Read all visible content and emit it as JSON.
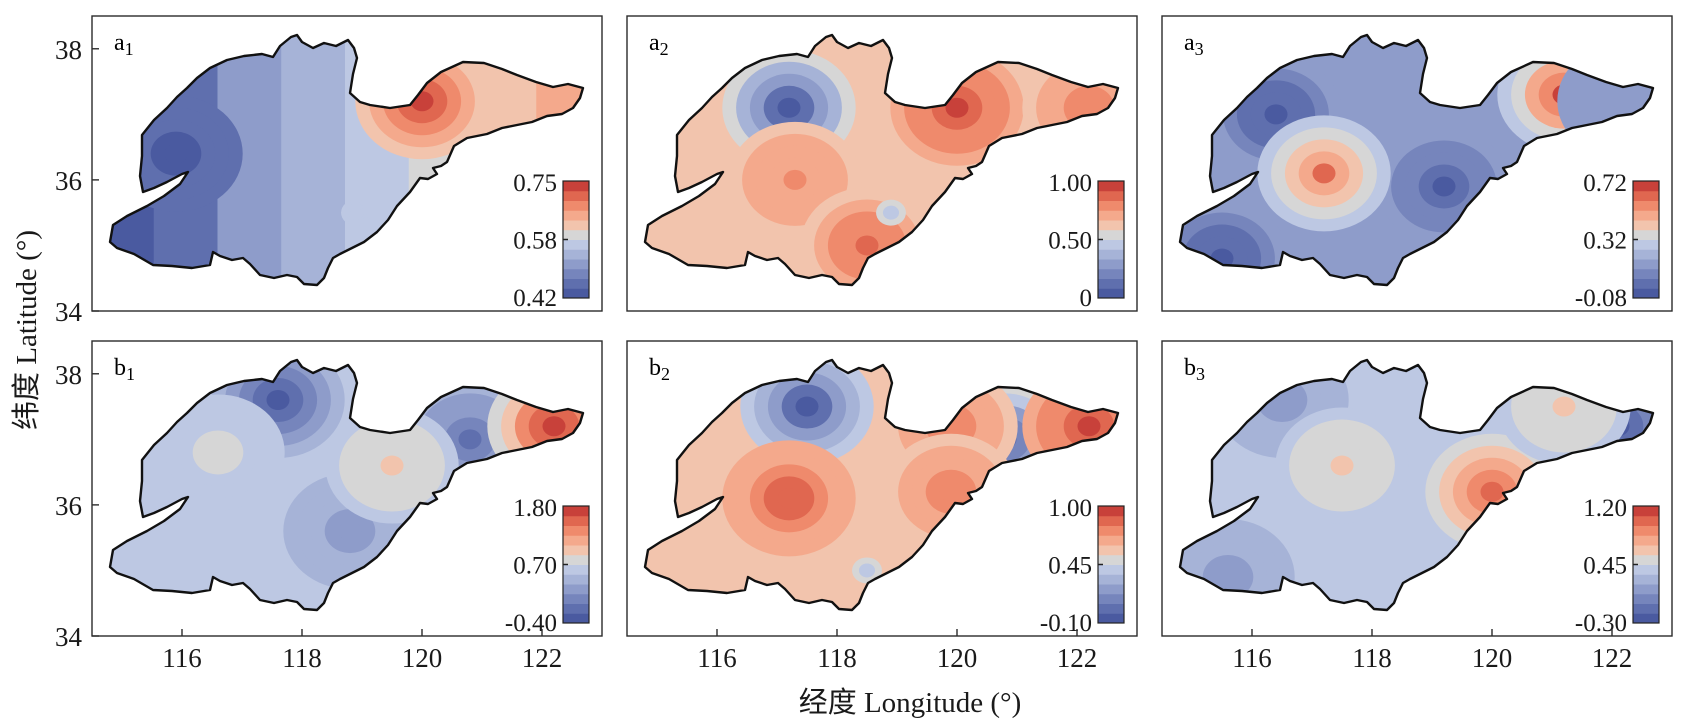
{
  "figure": {
    "xlabel": "经度 Longitude (°)",
    "ylabel": "纬度 Latitude (°)"
  },
  "chart_data": {
    "type": "heatmap",
    "title": "",
    "xlabel": "经度 Longitude (°)",
    "ylabel": "纬度 Latitude (°)",
    "xlim": [
      114.5,
      123.0
    ],
    "ylim": [
      34,
      38.5
    ],
    "x_ticks": [
      116,
      118,
      120,
      122
    ],
    "y_ticks": [
      34,
      36,
      38
    ],
    "grid": false,
    "layout": "2 rows x 3 columns, shared axes",
    "colormap": {
      "name": "diverging blue-white-red",
      "levels": [
        "#4a5aa0",
        "#5f6fae",
        "#7685bc",
        "#8e9cca",
        "#a6b3d7",
        "#bdc8e3",
        "#d6d6d6",
        "#f2c4ad",
        "#f4a98c",
        "#ef8a6c",
        "#e06750",
        "#c8413a"
      ]
    },
    "panels": [
      {
        "id": "a1",
        "label": "a",
        "sub": "1",
        "colorbar": {
          "min": "0.42",
          "mid": "0.58",
          "max": "0.75",
          "range": [
            0.42,
            0.75
          ]
        },
        "features": [
          {
            "type": "gradient-west-east",
            "west_value": 0.44,
            "east_value": 0.66
          },
          {
            "type": "high",
            "lon": 120.0,
            "lat": 37.2,
            "value": 0.74
          },
          {
            "type": "low",
            "lon": 115.9,
            "lat": 36.4,
            "value": 0.43
          },
          {
            "type": "local",
            "lon": 118.9,
            "lat": 35.5,
            "value": 0.58
          }
        ]
      },
      {
        "id": "a2",
        "label": "a",
        "sub": "2",
        "colorbar": {
          "min": "0",
          "mid": "0.50",
          "max": "1.00",
          "range": [
            0.0,
            1.0
          ]
        },
        "features": [
          {
            "type": "background",
            "value": 0.62
          },
          {
            "type": "low",
            "lon": 117.2,
            "lat": 37.1,
            "value": 0.05
          },
          {
            "type": "high",
            "lon": 120.0,
            "lat": 37.1,
            "value": 0.95
          },
          {
            "type": "high",
            "lon": 122.2,
            "lat": 37.1,
            "value": 0.82
          },
          {
            "type": "high",
            "lon": 117.3,
            "lat": 36.0,
            "value": 0.78
          },
          {
            "type": "high",
            "lon": 118.5,
            "lat": 35.0,
            "value": 0.85
          },
          {
            "type": "local",
            "lon": 118.9,
            "lat": 35.5,
            "value": 0.42
          }
        ]
      },
      {
        "id": "a3",
        "label": "a",
        "sub": "3",
        "colorbar": {
          "min": "-0.08",
          "mid": "0.32",
          "max": "0.72",
          "range": [
            -0.08,
            0.72
          ]
        },
        "features": [
          {
            "type": "background",
            "value": 0.18
          },
          {
            "type": "low",
            "lon": 116.4,
            "lat": 37.0,
            "value": -0.05
          },
          {
            "type": "low",
            "lon": 115.5,
            "lat": 34.8,
            "value": -0.05
          },
          {
            "type": "low",
            "lon": 119.2,
            "lat": 35.9,
            "value": -0.03
          },
          {
            "type": "high",
            "lon": 117.2,
            "lat": 36.1,
            "value": 0.6
          },
          {
            "type": "high",
            "lon": 121.2,
            "lat": 37.3,
            "value": 0.68
          },
          {
            "type": "low",
            "lon": 122.2,
            "lat": 37.2,
            "value": 0.12
          }
        ]
      },
      {
        "id": "b1",
        "label": "b",
        "sub": "1",
        "colorbar": {
          "min": "-0.40",
          "mid": "0.70",
          "max": "1.80",
          "range": [
            -0.4,
            1.8
          ]
        },
        "features": [
          {
            "type": "background",
            "value": 0.55
          },
          {
            "type": "low",
            "lon": 117.6,
            "lat": 37.6,
            "value": -0.3
          },
          {
            "type": "low",
            "lon": 120.8,
            "lat": 37.0,
            "value": -0.1
          },
          {
            "type": "low",
            "lon": 118.8,
            "lat": 35.6,
            "value": 0.2
          },
          {
            "type": "high",
            "lon": 122.2,
            "lat": 37.2,
            "value": 1.75
          },
          {
            "type": "high",
            "lon": 119.5,
            "lat": 36.6,
            "value": 0.95
          },
          {
            "type": "high",
            "lon": 116.6,
            "lat": 36.8,
            "value": 0.75
          }
        ]
      },
      {
        "id": "b2",
        "label": "b",
        "sub": "2",
        "colorbar": {
          "min": "-0.10",
          "mid": "0.45",
          "max": "1.00",
          "range": [
            -0.1,
            1.0
          ]
        },
        "features": [
          {
            "type": "background",
            "value": 0.58
          },
          {
            "type": "low",
            "lon": 117.5,
            "lat": 37.5,
            "value": -0.08
          },
          {
            "type": "low",
            "lon": 120.8,
            "lat": 37.0,
            "value": 0.05
          },
          {
            "type": "high",
            "lon": 117.2,
            "lat": 36.1,
            "value": 0.88
          },
          {
            "type": "high",
            "lon": 122.2,
            "lat": 37.2,
            "value": 0.95
          },
          {
            "type": "high",
            "lon": 119.9,
            "lat": 37.2,
            "value": 0.8
          },
          {
            "type": "high",
            "lon": 119.9,
            "lat": 36.2,
            "value": 0.8
          },
          {
            "type": "local",
            "lon": 118.5,
            "lat": 35.0,
            "value": 0.38
          }
        ]
      },
      {
        "id": "b3",
        "label": "b",
        "sub": "3",
        "colorbar": {
          "min": "-0.30",
          "mid": "0.45",
          "max": "1.20",
          "range": [
            -0.3,
            1.2
          ]
        },
        "features": [
          {
            "type": "background",
            "value": 0.38
          },
          {
            "type": "low",
            "lon": 122.1,
            "lat": 37.2,
            "value": -0.25
          },
          {
            "type": "low",
            "lon": 116.5,
            "lat": 37.6,
            "value": 0.1
          },
          {
            "type": "low",
            "lon": 115.6,
            "lat": 34.9,
            "value": 0.1
          },
          {
            "type": "high",
            "lon": 120.0,
            "lat": 36.2,
            "value": 1.05
          },
          {
            "type": "high",
            "lon": 117.5,
            "lat": 36.6,
            "value": 0.62
          },
          {
            "type": "high",
            "lon": 121.2,
            "lat": 37.5,
            "value": 0.58
          }
        ]
      }
    ]
  }
}
